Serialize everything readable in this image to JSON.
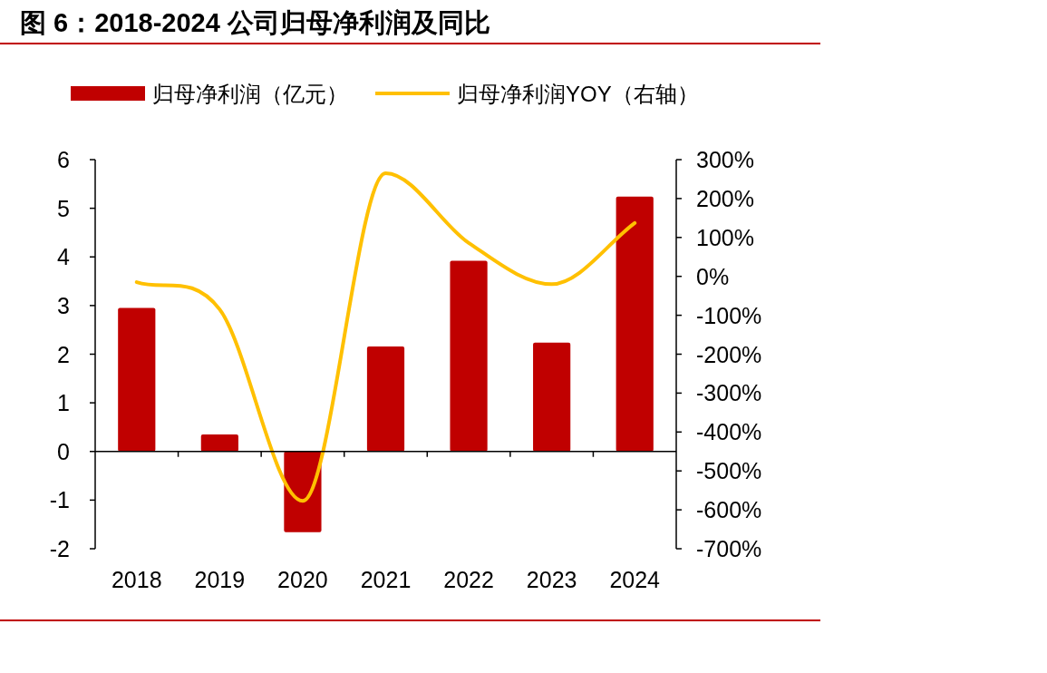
{
  "chart_data": {
    "type": "bar",
    "title": "图 6：2018-2024 公司归母净利润及同比",
    "categories": [
      "2018",
      "2019",
      "2020",
      "2021",
      "2022",
      "2023",
      "2024"
    ],
    "series": [
      {
        "name": "归母净利润（亿元）",
        "color": "#c00000",
        "values": [
          2.95,
          0.35,
          -1.66,
          2.16,
          3.92,
          2.24,
          5.24
        ]
      },
      {
        "name": "归母净利润YOY（右轴）",
        "type": "line",
        "axis": "y2",
        "color": "#ffc000",
        "values": [
          -15,
          -85,
          -577,
          265,
          86,
          -20,
          137
        ]
      }
    ],
    "ylim": [
      -2,
      6
    ],
    "yticks": [
      -2,
      -1,
      0,
      1,
      2,
      3,
      4,
      5,
      6
    ],
    "y2lim": [
      -700,
      300
    ],
    "y2ticks": [
      {
        "value": -700,
        "label": "-700%"
      },
      {
        "value": -600,
        "label": "-600%"
      },
      {
        "value": -500,
        "label": "-500%"
      },
      {
        "value": -400,
        "label": "-400%"
      },
      {
        "value": -300,
        "label": "-300%"
      },
      {
        "value": -200,
        "label": "-200%"
      },
      {
        "value": -100,
        "label": "-100%"
      },
      {
        "value": 0,
        "label": "0%"
      },
      {
        "value": 100,
        "label": "100%"
      },
      {
        "value": 200,
        "label": "200%"
      },
      {
        "value": 300,
        "label": "300%"
      }
    ],
    "legend": "top"
  }
}
